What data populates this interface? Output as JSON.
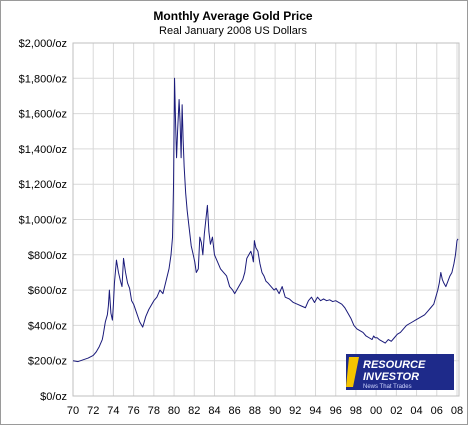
{
  "chart_data": {
    "type": "line",
    "title": "Monthly Average Gold Price",
    "subtitle": "Real January 2008 US Dollars",
    "xlabel": "",
    "ylabel": "",
    "xlim": [
      1970,
      2008.2
    ],
    "ylim": [
      0,
      2000
    ],
    "y_ticks": [
      0,
      200,
      400,
      600,
      800,
      1000,
      1200,
      1400,
      1600,
      1800,
      2000
    ],
    "y_tick_labels": [
      "$0/oz",
      "$200/oz",
      "$400/oz",
      "$600/oz",
      "$800/oz",
      "$1,000/oz",
      "$1,200/oz",
      "$1,400/oz",
      "$1,600/oz",
      "$1,800/oz",
      "$2,000/oz"
    ],
    "x_ticks": [
      1970,
      1972,
      1974,
      1976,
      1978,
      1980,
      1982,
      1984,
      1986,
      1988,
      1990,
      1992,
      1994,
      1996,
      1998,
      2000,
      2002,
      2004,
      2006,
      2008
    ],
    "x_tick_labels": [
      "70",
      "72",
      "74",
      "76",
      "78",
      "80",
      "82",
      "84",
      "86",
      "88",
      "90",
      "92",
      "94",
      "96",
      "98",
      "00",
      "02",
      "04",
      "06",
      "08"
    ],
    "grid": true,
    "line_color": "#1a1a7a",
    "series": [
      {
        "x": [
          1970.0,
          1970.5,
          1971.0,
          1971.5,
          1972.0,
          1972.3,
          1972.6,
          1972.9,
          1973.0,
          1973.2,
          1973.4,
          1973.5,
          1973.6,
          1973.75,
          1973.9,
          1974.0,
          1974.1,
          1974.3,
          1974.5,
          1974.7,
          1974.85,
          1975.0,
          1975.2,
          1975.4,
          1975.6,
          1975.8,
          1976.0,
          1976.3,
          1976.6,
          1976.9,
          1977.2,
          1977.5,
          1977.8,
          1978.0,
          1978.3,
          1978.6,
          1978.9,
          1979.2,
          1979.5,
          1979.7,
          1979.85,
          1979.95,
          1980.05,
          1980.15,
          1980.25,
          1980.35,
          1980.5,
          1980.6,
          1980.7,
          1980.8,
          1980.9,
          1981.0,
          1981.15,
          1981.3,
          1981.5,
          1981.7,
          1981.9,
          1982.05,
          1982.2,
          1982.4,
          1982.55,
          1982.7,
          1982.85,
          1983.0,
          1983.15,
          1983.3,
          1983.45,
          1983.6,
          1983.8,
          1984.0,
          1984.3,
          1984.6,
          1984.9,
          1985.2,
          1985.5,
          1985.8,
          1986.0,
          1986.3,
          1986.6,
          1986.8,
          1987.0,
          1987.2,
          1987.4,
          1987.6,
          1987.75,
          1987.85,
          1987.95,
          1988.1,
          1988.3,
          1988.5,
          1988.7,
          1988.9,
          1989.1,
          1989.3,
          1989.6,
          1989.9,
          1990.1,
          1990.4,
          1990.7,
          1991.0,
          1991.4,
          1991.8,
          1992.2,
          1992.6,
          1993.0,
          1993.3,
          1993.6,
          1993.9,
          1994.2,
          1994.5,
          1994.8,
          1995.1,
          1995.4,
          1995.7,
          1996.0,
          1996.3,
          1996.6,
          1996.9,
          1997.2,
          1997.5,
          1997.8,
          1998.1,
          1998.4,
          1998.7,
          1999.0,
          1999.3,
          1999.6,
          1999.75,
          1999.9,
          2000.1,
          2000.3,
          2000.6,
          2000.9,
          2001.2,
          2001.5,
          2001.8,
          2002.1,
          2002.4,
          2002.7,
          2003.0,
          2003.3,
          2003.6,
          2003.9,
          2004.2,
          2004.5,
          2004.8,
          2005.1,
          2005.4,
          2005.7,
          2005.9,
          2006.1,
          2006.25,
          2006.4,
          2006.55,
          2006.7,
          2006.9,
          2007.1,
          2007.3,
          2007.5,
          2007.7,
          2007.85,
          2008.0,
          2008.1
        ],
        "values": [
          200,
          195,
          205,
          215,
          230,
          250,
          280,
          320,
          350,
          420,
          460,
          510,
          600,
          470,
          430,
          520,
          640,
          770,
          700,
          650,
          620,
          780,
          700,
          640,
          610,
          540,
          520,
          470,
          420,
          390,
          450,
          490,
          520,
          540,
          560,
          600,
          580,
          650,
          720,
          800,
          900,
          1200,
          1800,
          1550,
          1350,
          1500,
          1680,
          1550,
          1350,
          1650,
          1450,
          1300,
          1150,
          1050,
          950,
          850,
          800,
          760,
          700,
          720,
          900,
          870,
          800,
          920,
          1000,
          1080,
          930,
          860,
          900,
          800,
          760,
          720,
          700,
          680,
          620,
          600,
          580,
          610,
          640,
          660,
          700,
          780,
          800,
          820,
          790,
          760,
          880,
          840,
          820,
          750,
          700,
          680,
          650,
          640,
          620,
          600,
          610,
          580,
          620,
          560,
          550,
          530,
          520,
          510,
          500,
          540,
          560,
          530,
          560,
          540,
          550,
          540,
          545,
          535,
          540,
          530,
          520,
          500,
          470,
          440,
          400,
          380,
          370,
          360,
          340,
          330,
          320,
          340,
          330,
          330,
          320,
          310,
          300,
          320,
          310,
          330,
          350,
          360,
          380,
          400,
          410,
          420,
          430,
          440,
          450,
          460,
          480,
          500,
          520,
          560,
          600,
          640,
          700,
          660,
          640,
          620,
          650,
          680,
          700,
          750,
          800,
          880,
          890
        ]
      }
    ]
  },
  "logo": {
    "line1": "RESOURCE",
    "line2": "INVESTOR",
    "tagline": "News That Trades"
  }
}
